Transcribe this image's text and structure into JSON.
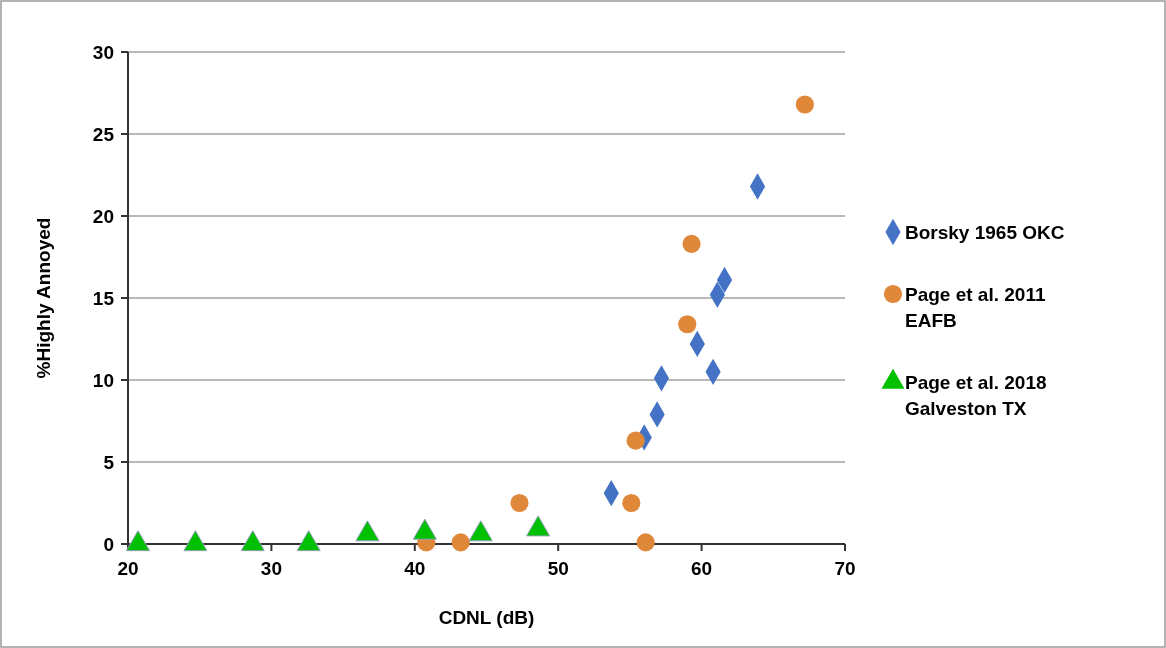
{
  "chart_data": {
    "type": "scatter",
    "xlabel": "CDNL (dB)",
    "ylabel": "%Highly Annoyed",
    "xlim": [
      20,
      70
    ],
    "ylim": [
      0,
      30
    ],
    "xticks": [
      20,
      30,
      40,
      50,
      60,
      70
    ],
    "yticks": [
      0,
      5,
      10,
      15,
      20,
      25,
      30
    ],
    "grid": "y",
    "legend": "right",
    "series": [
      {
        "name": "Borsky 1965 OKC",
        "color": "#4472c4",
        "marker": "diamond",
        "x": [
          53.7,
          56.0,
          56.9,
          57.2,
          59.7,
          60.8,
          61.1,
          61.6,
          63.9
        ],
        "values": [
          3.1,
          6.5,
          7.9,
          10.1,
          12.2,
          10.5,
          15.2,
          16.1,
          21.8
        ]
      },
      {
        "name": "Page et al. 2011 EAFB",
        "color": "#e0883a",
        "marker": "circle",
        "x": [
          40.8,
          43.2,
          47.3,
          55.1,
          55.4,
          56.1,
          59.0,
          59.3,
          67.2
        ],
        "values": [
          0.1,
          0.1,
          2.5,
          2.5,
          6.3,
          0.1,
          13.4,
          18.3,
          26.8
        ]
      },
      {
        "name": "Page et al. 2018 Galveston TX",
        "color": "#00c000",
        "marker": "triangle",
        "x": [
          20.7,
          24.7,
          28.7,
          32.6,
          36.7,
          40.7,
          44.6,
          48.6
        ],
        "values": [
          0,
          0,
          0,
          0,
          0.6,
          0.7,
          0.6,
          0.9
        ]
      }
    ]
  }
}
